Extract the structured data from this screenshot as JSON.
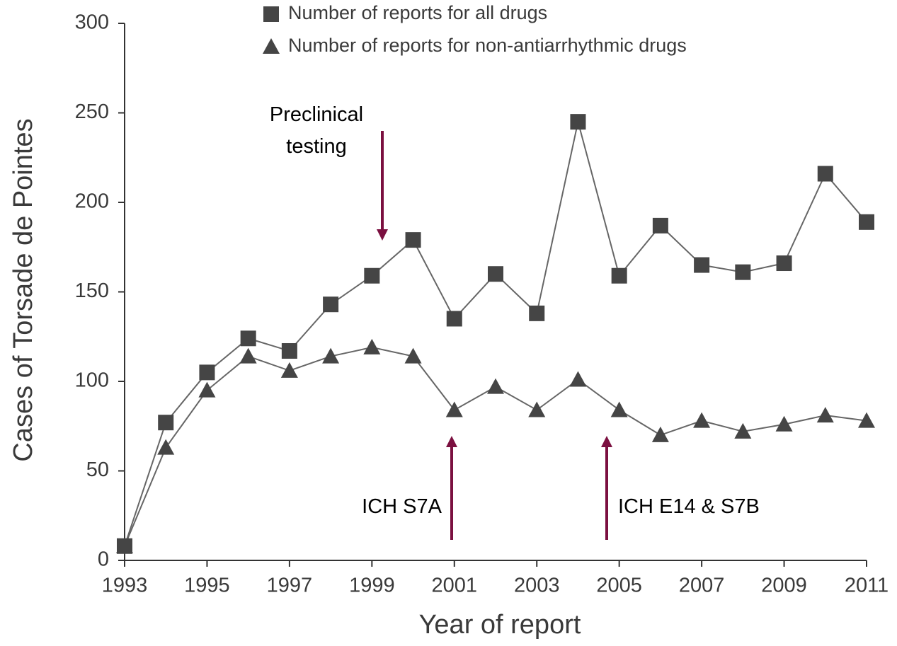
{
  "chart_data": {
    "type": "line",
    "x": [
      1993,
      1994,
      1995,
      1996,
      1997,
      1998,
      1999,
      2000,
      2001,
      2002,
      2003,
      2004,
      2005,
      2006,
      2007,
      2008,
      2009,
      2010,
      2011
    ],
    "series": [
      {
        "name": "Number of reports for all drugs",
        "color": "#454545",
        "marker": "square",
        "values": [
          8,
          77,
          105,
          124,
          117,
          143,
          159,
          179,
          135,
          160,
          138,
          245,
          159,
          187,
          165,
          161,
          166,
          216,
          189
        ]
      },
      {
        "name": "Number of reports for non-antiarrhythmic drugs",
        "color": "#454545",
        "marker": "triangle",
        "values": [
          8,
          63,
          95,
          114,
          106,
          114,
          119,
          114,
          84,
          97,
          84,
          101,
          84,
          70,
          78,
          72,
          76,
          81,
          78
        ]
      }
    ],
    "xlabel": "Year of report",
    "ylabel": "Cases of Torsade de Pointes",
    "xlim": [
      1993,
      2011
    ],
    "xticks": [
      1993,
      1995,
      1997,
      1999,
      2001,
      2003,
      2005,
      2007,
      2009,
      2011
    ],
    "ylim": [
      0,
      300
    ],
    "yticks": [
      0,
      50,
      100,
      150,
      200,
      250,
      300
    ],
    "legend": "top",
    "annotations": [
      "Preclinical testing",
      "ICH S7A",
      "ICH E14 & S7B"
    ]
  }
}
